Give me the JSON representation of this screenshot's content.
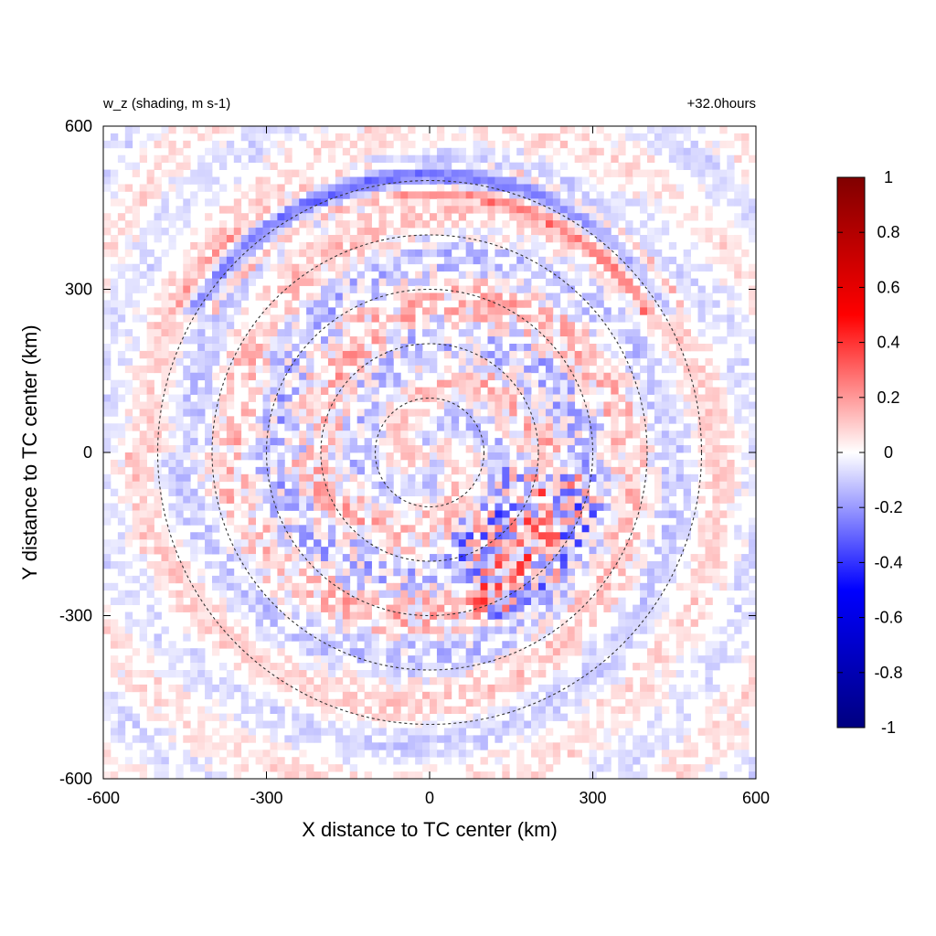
{
  "chart_data": {
    "type": "heatmap",
    "title_left": "w_z (shading, m s-1)",
    "title_right": "+32.0hours",
    "xlabel": "X distance to TC center (km)",
    "ylabel": "Y distance to TC center (km)",
    "xlim": [
      -600,
      600
    ],
    "ylim": [
      -600,
      600
    ],
    "x_ticks": [
      "-600",
      "-300",
      "0",
      "300",
      "600"
    ],
    "y_ticks": [
      "600",
      "300",
      "0",
      "-300",
      "-600"
    ],
    "colorbar": {
      "min": -1,
      "max": 1,
      "ticks": [
        "1",
        "0.8",
        "0.6",
        "0.4",
        "0.2",
        "0",
        "-0.2",
        "-0.4",
        "-0.6",
        "-0.8",
        "-1"
      ],
      "colors": [
        "#000080",
        "#0000ff",
        "#ffffff",
        "#ff0000",
        "#800000"
      ]
    },
    "rings_km": [
      100,
      200,
      300,
      400,
      500
    ],
    "center": [
      0,
      0
    ],
    "colors": {
      "ring": "#333333",
      "positive": "#ff0000",
      "negative": "#0000ff"
    }
  }
}
